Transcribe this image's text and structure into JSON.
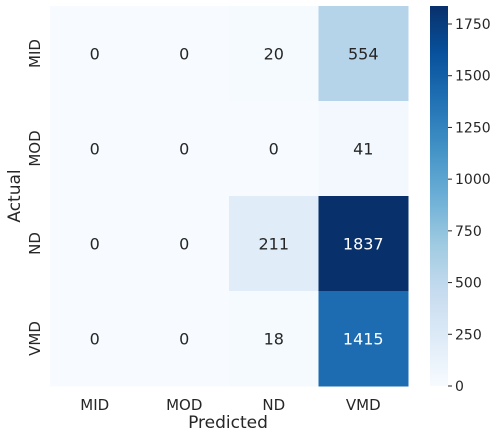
{
  "chart_data": {
    "type": "heatmap",
    "title": "",
    "xlabel": "Predicted",
    "ylabel": "Actual",
    "x_categories": [
      "MID",
      "MOD",
      "ND",
      "VMD"
    ],
    "y_categories": [
      "MID",
      "MOD",
      "ND",
      "VMD"
    ],
    "values": [
      [
        0,
        0,
        20,
        554
      ],
      [
        0,
        0,
        0,
        41
      ],
      [
        0,
        0,
        211,
        1837
      ],
      [
        0,
        0,
        18,
        1415
      ]
    ],
    "colormap": "Blues",
    "colorbar": {
      "range": [
        0,
        1837
      ],
      "ticks": [
        0,
        250,
        500,
        750,
        1000,
        1250,
        1500,
        1750
      ]
    },
    "annotations": true
  }
}
